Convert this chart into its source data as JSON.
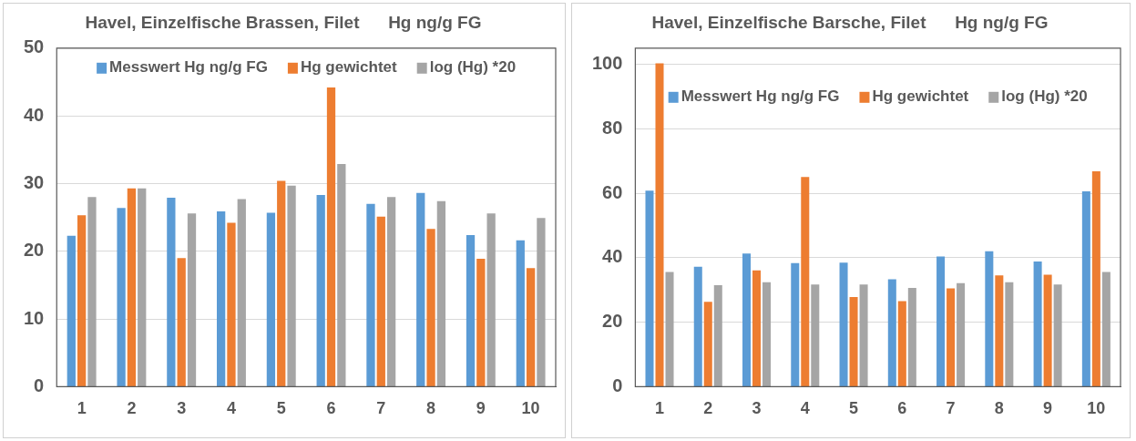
{
  "chart_data": [
    {
      "type": "bar",
      "title": "Havel, Einzelfische Brassen, Filet      Hg ng/g FG",
      "categories": [
        "1",
        "2",
        "3",
        "4",
        "5",
        "6",
        "7",
        "8",
        "9",
        "10"
      ],
      "series": [
        {
          "name": "Messwert Hg ng/g FG",
          "color": "#5b9bd5",
          "values": [
            22.3,
            26.4,
            27.9,
            25.9,
            25.7,
            28.3,
            27.0,
            28.6,
            22.4,
            21.6
          ]
        },
        {
          "name": "Hg gewichtet",
          "color": "#ed7d31",
          "values": [
            25.3,
            29.3,
            19.0,
            24.2,
            30.4,
            44.2,
            25.1,
            23.3,
            18.9,
            17.5
          ]
        },
        {
          "name": "log (Hg) *20",
          "color": "#a5a5a5",
          "values": [
            28.0,
            29.3,
            25.6,
            27.7,
            29.7,
            32.9,
            28.0,
            27.4,
            25.6,
            24.9
          ]
        }
      ],
      "ylim": [
        0,
        50
      ],
      "yticks": [
        0,
        10,
        20,
        30,
        40,
        50
      ],
      "grid": "y",
      "legend": "top"
    },
    {
      "type": "bar",
      "title": "Havel, Einzelfische Barsche, Filet      Hg ng/g FG",
      "categories": [
        "1",
        "2",
        "3",
        "4",
        "5",
        "6",
        "7",
        "8",
        "9",
        "10"
      ],
      "series": [
        {
          "name": "Messwert Hg ng/g FG",
          "color": "#5b9bd5",
          "values": [
            60.8,
            37.2,
            41.3,
            38.3,
            38.5,
            33.3,
            40.4,
            42.0,
            38.8,
            60.6
          ]
        },
        {
          "name": "Hg gewichtet",
          "color": "#ed7d31",
          "values": [
            100.3,
            26.3,
            36.1,
            65.0,
            27.8,
            26.5,
            30.5,
            34.5,
            34.7,
            66.8
          ]
        },
        {
          "name": "log (Hg) *20",
          "color": "#a5a5a5",
          "values": [
            35.6,
            31.5,
            32.4,
            31.7,
            31.7,
            30.6,
            32.1,
            32.4,
            31.7,
            35.6
          ]
        }
      ],
      "ylim": [
        0,
        105
      ],
      "yticks": [
        0,
        20,
        40,
        60,
        80,
        100
      ],
      "grid": "y",
      "legend": "top"
    }
  ]
}
